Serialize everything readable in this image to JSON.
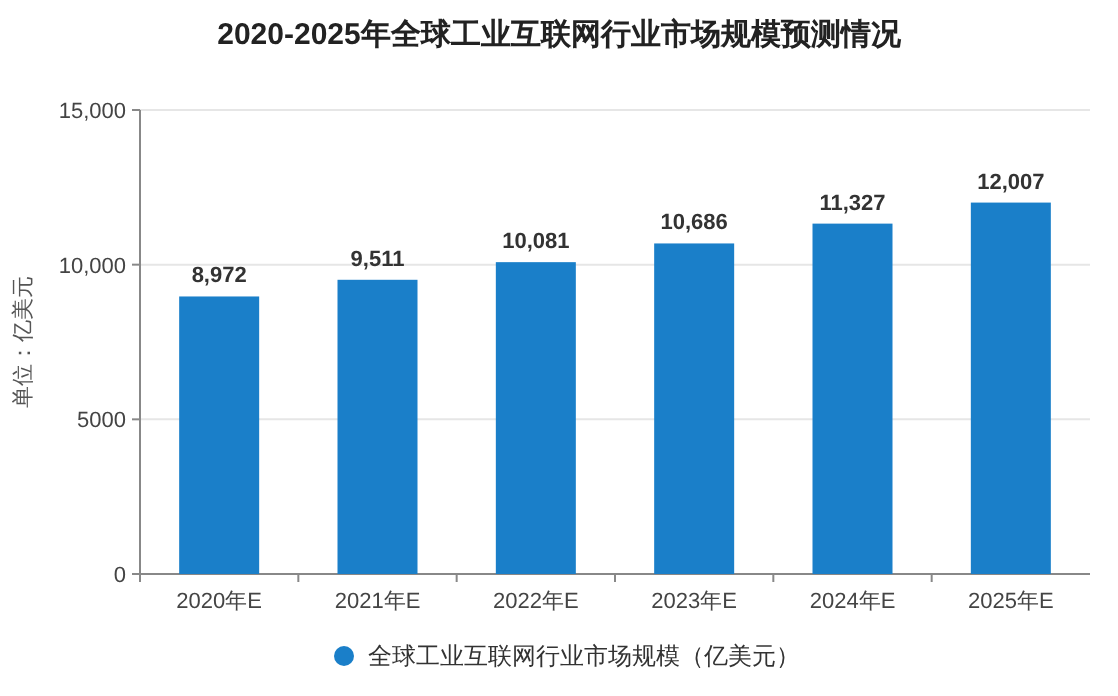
{
  "chart_data": {
    "type": "bar",
    "title": "2020-2025年全球工业互联网行业市场规模预测情况",
    "ylabel": "单位：亿美元",
    "categories": [
      "2020年E",
      "2021年E",
      "2022年E",
      "2023年E",
      "2024年E",
      "2025年E"
    ],
    "series": [
      {
        "name": "全球工业互联网行业市场规模（亿美元）",
        "color": "#1a7fc9",
        "values": [
          8972,
          9511,
          10081,
          10686,
          11327,
          12007
        ],
        "value_labels": [
          "8,972",
          "9,511",
          "10,081",
          "10,686",
          "11,327",
          "12,007"
        ]
      }
    ],
    "ylim": [
      0,
      15000
    ],
    "yticks": [
      0,
      5000,
      {
        "value": 10000,
        "label": "10,000"
      },
      {
        "value": 15000,
        "label": "15,000"
      }
    ],
    "grid": "y",
    "legend": "bottom"
  }
}
